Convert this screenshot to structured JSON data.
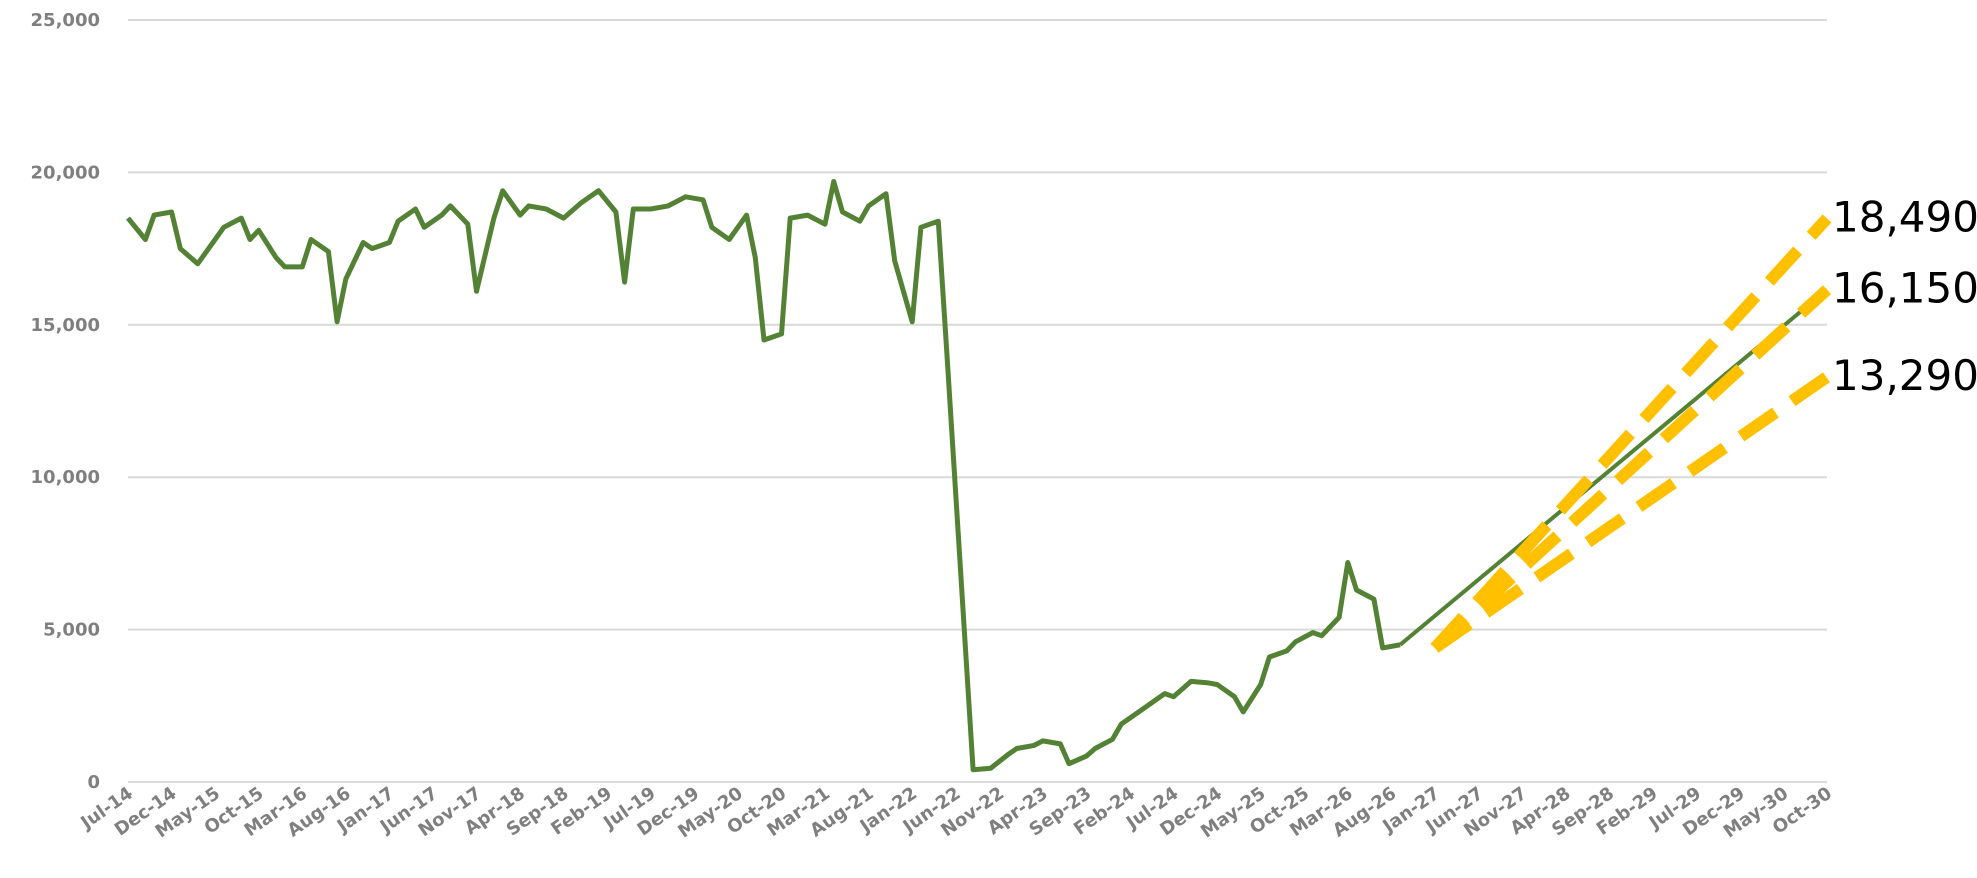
{
  "chart_data": {
    "type": "line",
    "title": "",
    "xlabel": "",
    "ylabel": "",
    "ylim": [
      0,
      25000
    ],
    "y_ticks": [
      0,
      5000,
      10000,
      15000,
      20000,
      25000
    ],
    "y_tick_labels": [
      "0",
      "5,000",
      "10,000",
      "15,000",
      "20,000",
      "25,000"
    ],
    "grid": "horizontal",
    "legend": "none",
    "x_tick_labels": [
      "Jul-14",
      "Dec-14",
      "May-15",
      "Oct-15",
      "Mar-16",
      "Aug-16",
      "Jan-17",
      "Jun-17",
      "Nov-17",
      "Apr-18",
      "Sep-18",
      "Feb-19",
      "Jul-19",
      "Dec-19",
      "May-20",
      "Oct-20",
      "Mar-21",
      "Aug-21",
      "Jan-22",
      "Jun-22",
      "Nov-22",
      "Apr-23",
      "Sep-23",
      "Feb-24",
      "Jul-24",
      "Dec-24",
      "May-25",
      "Oct-25",
      "Mar-26",
      "Aug-26",
      "Jan-27",
      "Jun-27",
      "Nov-27",
      "Apr-28",
      "Sep-28",
      "Feb-29",
      "Jul-29",
      "Dec-29",
      "May-30",
      "Oct-30"
    ],
    "series": [
      {
        "role": "actual",
        "color": "#548235",
        "style": "solid",
        "points": [
          [
            "Jul-14",
            18500
          ],
          [
            "Sep-14",
            17800
          ],
          [
            "Oct-14",
            18600
          ],
          [
            "Dec-14",
            18700
          ],
          [
            "Jan-15",
            17500
          ],
          [
            "Mar-15",
            17000
          ],
          [
            "Jun-15",
            18200
          ],
          [
            "Aug-15",
            18500
          ],
          [
            "Sep-15",
            17800
          ],
          [
            "Oct-15",
            18100
          ],
          [
            "Dec-15",
            17200
          ],
          [
            "Jan-16",
            16900
          ],
          [
            "Mar-16",
            16900
          ],
          [
            "Apr-16",
            17800
          ],
          [
            "Jun-16",
            17400
          ],
          [
            "Jul-16",
            15100
          ],
          [
            "Aug-16",
            16500
          ],
          [
            "Oct-16",
            17700
          ],
          [
            "Nov-16",
            17500
          ],
          [
            "Jan-17",
            17700
          ],
          [
            "Feb-17",
            18400
          ],
          [
            "Apr-17",
            18800
          ],
          [
            "May-17",
            18200
          ],
          [
            "Jul-17",
            18600
          ],
          [
            "Aug-17",
            18900
          ],
          [
            "Oct-17",
            18300
          ],
          [
            "Nov-17",
            16100
          ],
          [
            "Jan-18",
            18500
          ],
          [
            "Feb-18",
            19400
          ],
          [
            "Apr-18",
            18600
          ],
          [
            "May-18",
            18900
          ],
          [
            "Jul-18",
            18800
          ],
          [
            "Sep-18",
            18500
          ],
          [
            "Nov-18",
            19000
          ],
          [
            "Jan-19",
            19400
          ],
          [
            "Mar-19",
            18700
          ],
          [
            "Apr-19",
            16400
          ],
          [
            "May-19",
            18800
          ],
          [
            "Jul-19",
            18800
          ],
          [
            "Sep-19",
            18900
          ],
          [
            "Nov-19",
            19200
          ],
          [
            "Jan-20",
            19100
          ],
          [
            "Feb-20",
            18200
          ],
          [
            "Apr-20",
            17800
          ],
          [
            "Jun-20",
            18600
          ],
          [
            "Jul-20",
            17200
          ],
          [
            "Aug-20",
            14500
          ],
          [
            "Oct-20",
            14700
          ],
          [
            "Nov-20",
            18500
          ],
          [
            "Jan-21",
            18600
          ],
          [
            "Mar-21",
            18300
          ],
          [
            "Apr-21",
            19700
          ],
          [
            "May-21",
            18700
          ],
          [
            "Jul-21",
            18400
          ],
          [
            "Aug-21",
            18900
          ],
          [
            "Oct-21",
            19300
          ],
          [
            "Nov-21",
            17100
          ],
          [
            "Jan-22",
            15100
          ],
          [
            "Feb-22",
            18200
          ],
          [
            "Apr-22",
            18400
          ],
          [
            "May-22",
            14000
          ],
          [
            "Aug-22",
            400
          ],
          [
            "Oct-22",
            450
          ],
          [
            "Dec-22",
            900
          ],
          [
            "Jan-23",
            1100
          ],
          [
            "Mar-23",
            1200
          ],
          [
            "Apr-23",
            1350
          ],
          [
            "Jun-23",
            1250
          ],
          [
            "Jul-23",
            600
          ],
          [
            "Sep-23",
            850
          ],
          [
            "Oct-23",
            1100
          ],
          [
            "Dec-23",
            1400
          ],
          [
            "Jan-24",
            1900
          ],
          [
            "Mar-24",
            2300
          ],
          [
            "May-24",
            2700
          ],
          [
            "Jun-24",
            2900
          ],
          [
            "Jul-24",
            2800
          ],
          [
            "Sep-24",
            3300
          ],
          [
            "Nov-24",
            3250
          ],
          [
            "Dec-24",
            3200
          ],
          [
            "Feb-25",
            2800
          ],
          [
            "Mar-25",
            2300
          ],
          [
            "May-25",
            3200
          ],
          [
            "Jun-25",
            4100
          ],
          [
            "Aug-25",
            4300
          ],
          [
            "Sep-25",
            4600
          ],
          [
            "Nov-25",
            4900
          ],
          [
            "Dec-25",
            4800
          ],
          [
            "Feb-26",
            5400
          ],
          [
            "Mar-26",
            7200
          ],
          [
            "Apr-26",
            6300
          ],
          [
            "Jun-26",
            6000
          ],
          [
            "Jul-26",
            4400
          ],
          [
            "Sep-26",
            4500
          ]
        ]
      },
      {
        "role": "trend",
        "color": "#548235",
        "style": "solid",
        "points": [
          [
            "Sep-26",
            4500
          ],
          [
            "Oct-30",
            16150
          ]
        ]
      },
      {
        "role": "high-scenario",
        "color": "#FFC000",
        "style": "dashed",
        "points": [
          [
            "Jan-27",
            4400
          ],
          [
            "Oct-30",
            18490
          ]
        ]
      },
      {
        "role": "mid-scenario",
        "color": "#FFC000",
        "style": "dashed",
        "points": [
          [
            "Jan-27",
            4400
          ],
          [
            "Oct-30",
            16150
          ]
        ]
      },
      {
        "role": "low-scenario",
        "color": "#FFC000",
        "style": "dashed",
        "points": [
          [
            "Jan-27",
            4400
          ],
          [
            "Oct-30",
            13290
          ]
        ]
      }
    ],
    "end_labels": [
      {
        "text": "18,490",
        "value": 18490
      },
      {
        "text": "16,150",
        "value": 16150
      },
      {
        "text": "13,290",
        "value": 13290
      }
    ]
  }
}
